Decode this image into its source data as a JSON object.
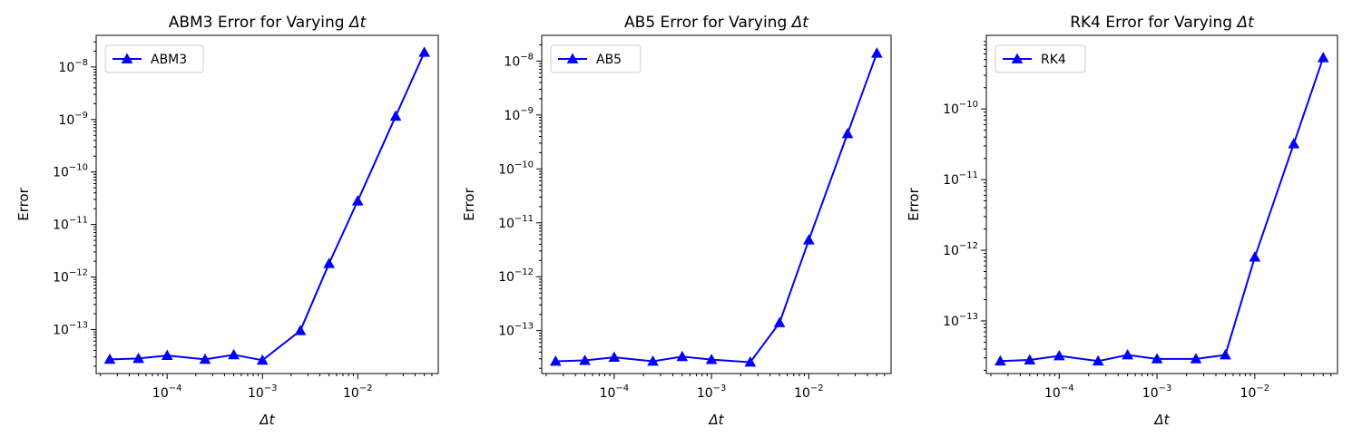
{
  "chart_data": [
    {
      "type": "line",
      "title": "ABM3 Error for Varying Δt",
      "title_main": "ABM3 Error for Varying ",
      "title_var": "Δt",
      "xlabel": "Δt",
      "ylabel": "Error",
      "xscale": "log",
      "yscale": "log",
      "xlim": [
        1.8e-05,
        0.07
      ],
      "ylim": [
        1.45e-14,
        4e-08
      ],
      "xticks": [
        {
          "value": 0.0001,
          "base": "10",
          "exp": "−4"
        },
        {
          "value": 0.001,
          "base": "10",
          "exp": "−3"
        },
        {
          "value": 0.01,
          "base": "10",
          "exp": "−2"
        }
      ],
      "yticks": [
        {
          "value": 1e-13,
          "base": "10",
          "exp": "−13"
        },
        {
          "value": 1e-12,
          "base": "10",
          "exp": "−12"
        },
        {
          "value": 1e-11,
          "base": "10",
          "exp": "−11"
        },
        {
          "value": 1e-10,
          "base": "10",
          "exp": "−10"
        },
        {
          "value": 1e-09,
          "base": "10",
          "exp": "−9"
        },
        {
          "value": 1e-08,
          "base": "10",
          "exp": "−8"
        }
      ],
      "grid": false,
      "legend_position": "upper-left",
      "series": [
        {
          "name": "ABM3",
          "color": "#0000ff",
          "marker": "triangle",
          "x": [
            2.5e-05,
            5e-05,
            0.0001,
            0.00025,
            0.0005,
            0.001,
            0.0025,
            0.005,
            0.01,
            0.025,
            0.05
          ],
          "y": [
            2.7e-14,
            2.8e-14,
            3.2e-14,
            2.7e-14,
            3.3e-14,
            2.6e-14,
            9.5e-14,
            1.8e-12,
            2.8e-11,
            1.15e-09,
            1.9e-08
          ]
        }
      ]
    },
    {
      "type": "line",
      "title": "AB5 Error for Varying Δt",
      "title_main": "AB5 Error for Varying ",
      "title_var": "Δt",
      "xlabel": "Δt",
      "ylabel": "Error",
      "xscale": "log",
      "yscale": "log",
      "xlim": [
        1.8e-05,
        0.07
      ],
      "ylim": [
        1.6e-14,
        3e-08
      ],
      "xticks": [
        {
          "value": 0.0001,
          "base": "10",
          "exp": "−4"
        },
        {
          "value": 0.001,
          "base": "10",
          "exp": "−3"
        },
        {
          "value": 0.01,
          "base": "10",
          "exp": "−2"
        }
      ],
      "yticks": [
        {
          "value": 1e-13,
          "base": "10",
          "exp": "−13"
        },
        {
          "value": 1e-12,
          "base": "10",
          "exp": "−12"
        },
        {
          "value": 1e-11,
          "base": "10",
          "exp": "−11"
        },
        {
          "value": 1e-10,
          "base": "10",
          "exp": "−10"
        },
        {
          "value": 1e-09,
          "base": "10",
          "exp": "−9"
        },
        {
          "value": 1e-08,
          "base": "10",
          "exp": "−8"
        }
      ],
      "grid": false,
      "legend_position": "upper-left",
      "series": [
        {
          "name": "AB5",
          "color": "#0000ff",
          "marker": "triangle",
          "x": [
            2.5e-05,
            5e-05,
            0.0001,
            0.00025,
            0.0005,
            0.001,
            0.0025,
            0.005,
            0.01,
            0.025,
            0.05
          ],
          "y": [
            2.7e-14,
            2.8e-14,
            3.2e-14,
            2.7e-14,
            3.3e-14,
            2.9e-14,
            2.6e-14,
            1.4e-13,
            4.8e-12,
            4.5e-10,
            1.4e-08
          ]
        }
      ]
    },
    {
      "type": "line",
      "title": "RK4 Error for Varying Δt",
      "title_main": "RK4 Error for Varying ",
      "title_var": "Δt",
      "xlabel": "Δt",
      "ylabel": "Error",
      "xscale": "log",
      "yscale": "log",
      "xlim": [
        1.8e-05,
        0.07
      ],
      "ylim": [
        1.8e-14,
        1.1e-09
      ],
      "xticks": [
        {
          "value": 0.0001,
          "base": "10",
          "exp": "−4"
        },
        {
          "value": 0.001,
          "base": "10",
          "exp": "−3"
        },
        {
          "value": 0.01,
          "base": "10",
          "exp": "−2"
        }
      ],
      "yticks": [
        {
          "value": 1e-13,
          "base": "10",
          "exp": "−13"
        },
        {
          "value": 1e-12,
          "base": "10",
          "exp": "−12"
        },
        {
          "value": 1e-11,
          "base": "10",
          "exp": "−11"
        },
        {
          "value": 1e-10,
          "base": "10",
          "exp": "−10"
        }
      ],
      "grid": false,
      "legend_position": "upper-left",
      "series": [
        {
          "name": "RK4",
          "color": "#0000ff",
          "marker": "triangle",
          "x": [
            2.5e-05,
            5e-05,
            0.0001,
            0.00025,
            0.0005,
            0.001,
            0.0025,
            0.005,
            0.01,
            0.025,
            0.05
          ],
          "y": [
            2.7e-14,
            2.8e-14,
            3.2e-14,
            2.7e-14,
            3.3e-14,
            2.9e-14,
            2.9e-14,
            3.3e-14,
            8e-13,
            3.2e-11,
            5.3e-10
          ]
        }
      ]
    }
  ]
}
